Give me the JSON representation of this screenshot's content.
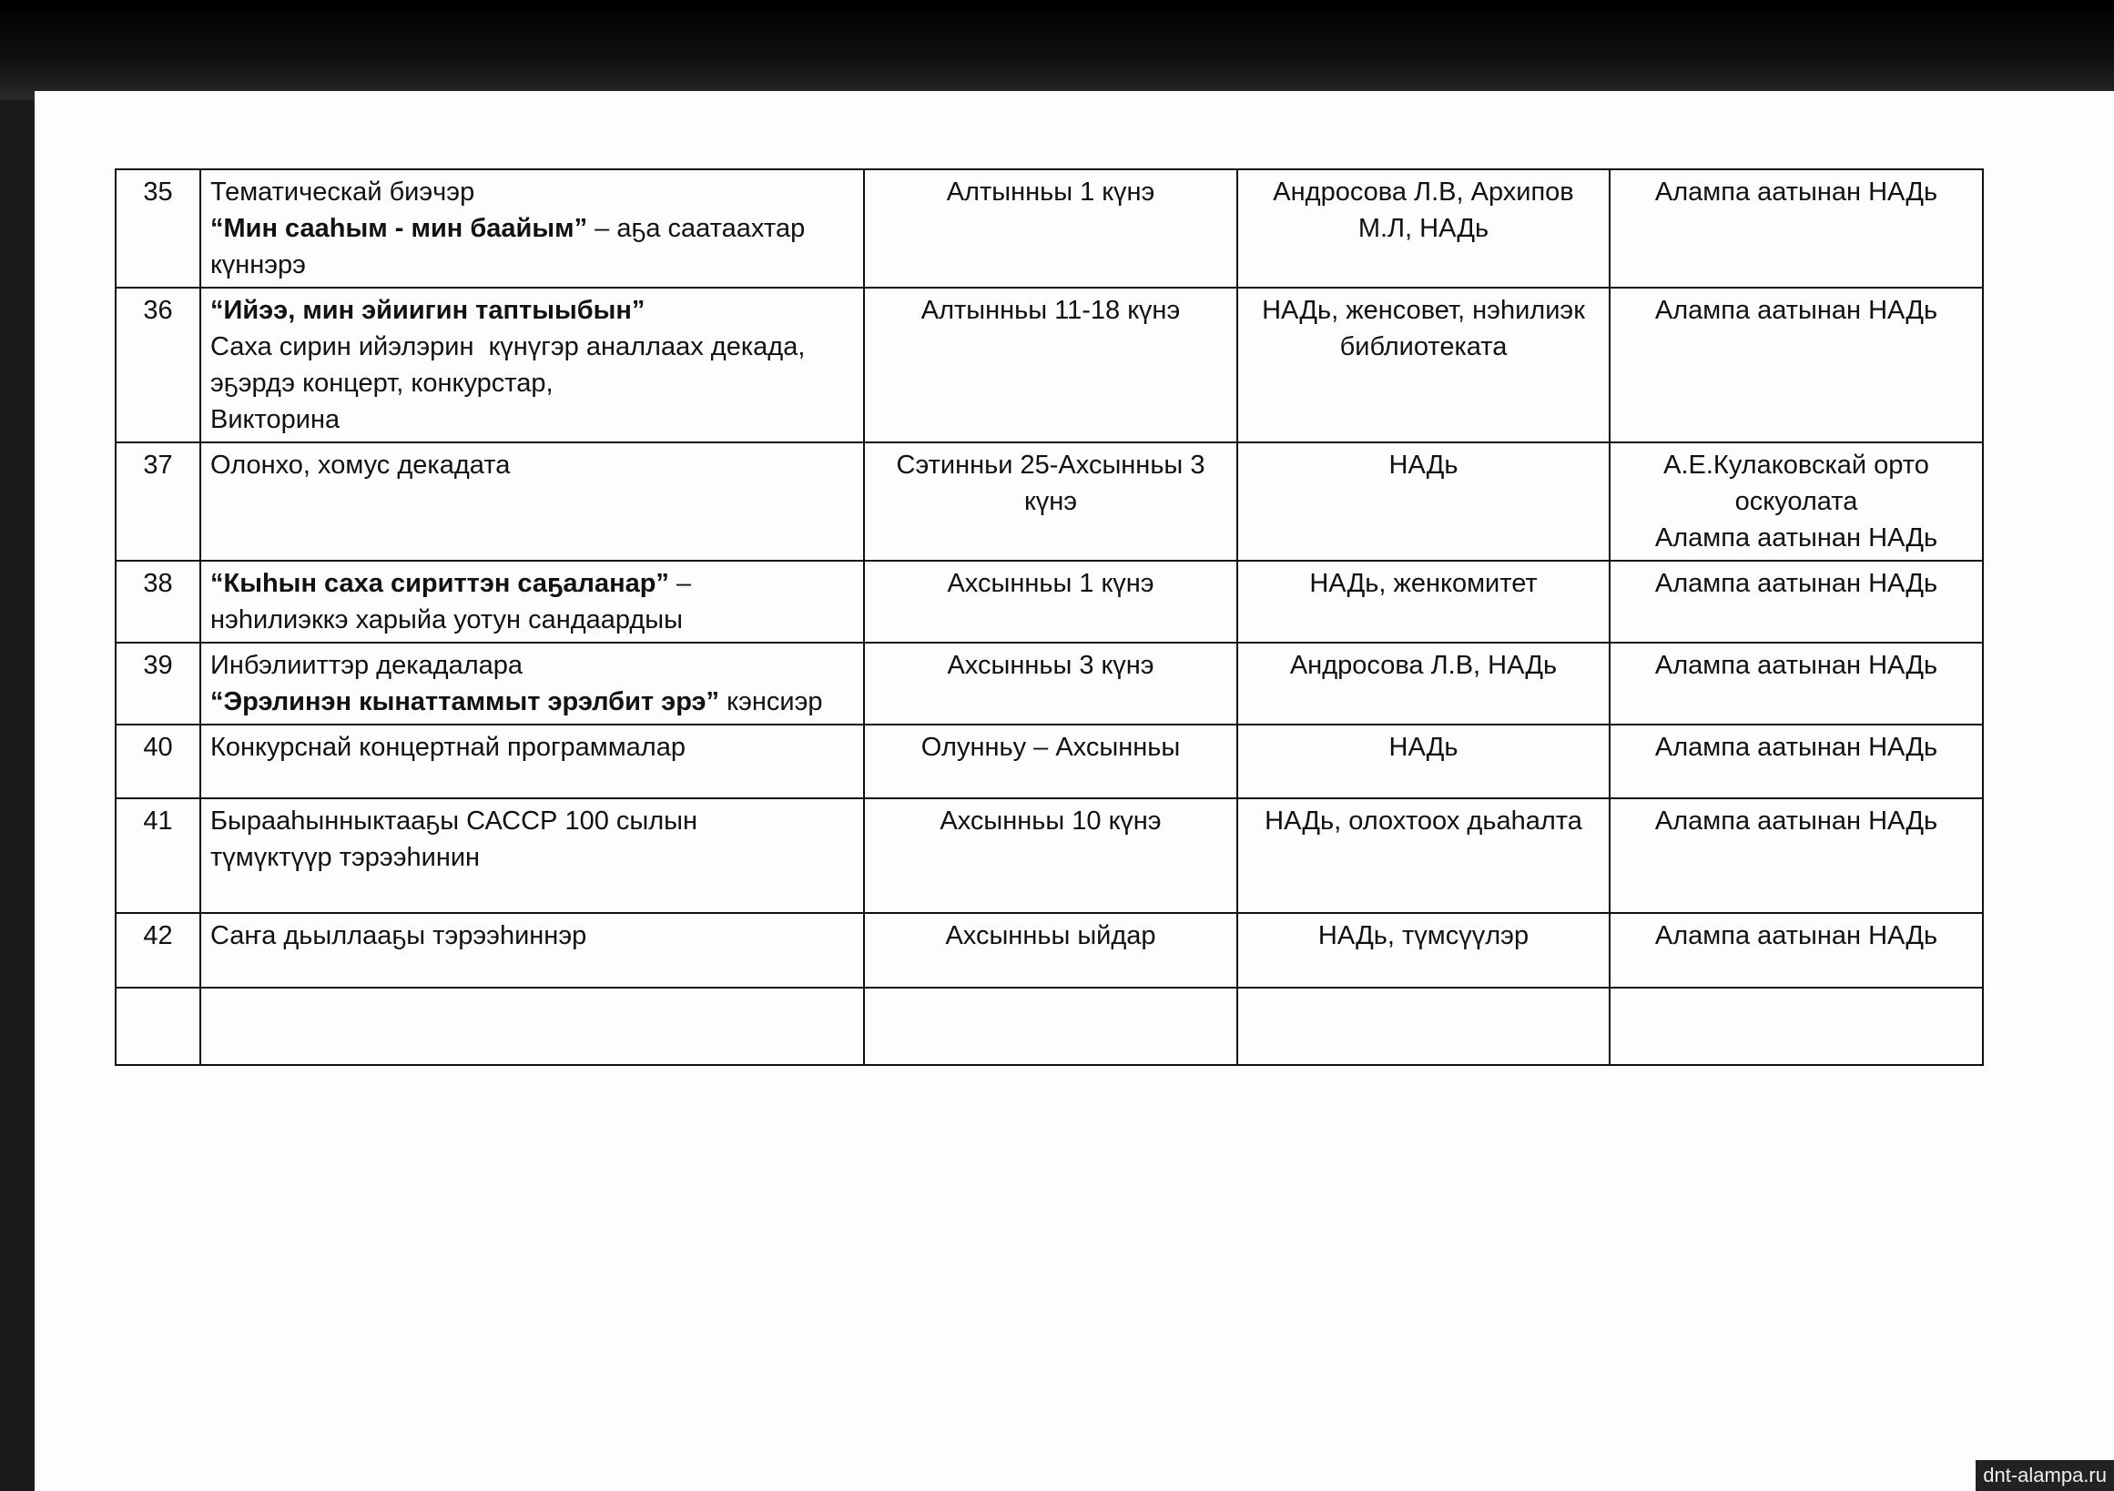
{
  "table": {
    "rows": [
      {
        "number": "35",
        "event": [
          [
            {
              "text": "Тематическай биэчэр",
              "bold": false
            }
          ],
          [
            {
              "text": "“Мин сааһым - мин баайым”",
              "bold": true
            },
            {
              "text": " – аҕа саатаахтар күннэрэ",
              "bold": false
            }
          ]
        ],
        "dates": "Алтынньы 1 күнэ",
        "responsible": "Андросова Л.В, Архипов М.Л, НАДь",
        "location": [
          "Алампа аатынан НАДь"
        ]
      },
      {
        "number": "36",
        "event": [
          [
            {
              "text": "“Ийээ, мин эйиигин таптыыбын”",
              "bold": true
            }
          ],
          [
            {
              "text": "Саха сирин ийэлэрин  күнүгэр аналлаах декада,",
              "bold": false
            }
          ],
          [
            {
              "text": "эҕэрдэ концерт, конкурстар,",
              "bold": false
            }
          ],
          [
            {
              "text": "Викторина",
              "bold": false
            }
          ]
        ],
        "dates": "Алтынньы 11-18 күнэ",
        "responsible": "НАДь, женсовет, нэһилиэк библиотеката",
        "location": [
          "Алампа аатынан НАДь"
        ]
      },
      {
        "number": "37",
        "event": [
          [
            {
              "text": "Олонхо, хомус декадата",
              "bold": false
            }
          ]
        ],
        "dates": "Сэтинньи 25-Ахсынньы 3 күнэ",
        "responsible": "НАДь",
        "location": [
          "А.Е.Кулаковскай орто оскуолата",
          "Алампа аатынан НАДь"
        ]
      },
      {
        "number": "38",
        "event": [
          [
            {
              "text": "“Кыһын саха сириттэн саҕаланар”",
              "bold": true
            },
            {
              "text": " –",
              "bold": false
            }
          ],
          [
            {
              "text": "нэһилиэккэ харыйа уотун сандаардыы",
              "bold": false
            }
          ]
        ],
        "dates": "Ахсынньы 1 күнэ",
        "responsible": "НАДь, женкомитет",
        "location": [
          "Алампа аатынан НАДь"
        ]
      },
      {
        "number": "39",
        "event": [
          [
            {
              "text": "Инбэлииттэр декадалара",
              "bold": false
            }
          ],
          [
            {
              "text": "“Эрэлинэн кынаттаммыт эрэлбит эрэ”",
              "bold": true
            },
            {
              "text": " кэнсиэр",
              "bold": false
            }
          ]
        ],
        "dates": "Ахсынньы 3 күнэ",
        "responsible": "Андросова Л.В, НАДь",
        "location": [
          "Алампа аатынан НАДь"
        ]
      },
      {
        "number": "40",
        "event": [
          [
            {
              "text": "Конкурснай концертнай программалар",
              "bold": false
            }
          ]
        ],
        "dates": "Олунньу – Ахсынньы",
        "responsible": "НАДь",
        "location": [
          "Алампа аатынан НАДь"
        ]
      },
      {
        "number": "41",
        "event": [
          [
            {
              "text": "Бырааһынныктааҕы САССР 100 сылын",
              "bold": false
            }
          ],
          [
            {
              "text": "түмүктүүр тэрээһинин",
              "bold": false
            }
          ]
        ],
        "dates": "Ахсынньы 10 күнэ",
        "responsible": "НАДь, олохтоох дьаһалта",
        "location": [
          "Алампа аатынан НАДь"
        ]
      },
      {
        "number": "42",
        "event": [
          [
            {
              "text": "Саҥа дьыллааҕы тэрээһиннэр",
              "bold": false
            }
          ]
        ],
        "dates": "Ахсынньы ыйдар",
        "responsible": "НАДь, түмсүүлэр",
        "location": [
          "Алампа аатынан НАДь"
        ]
      }
    ]
  },
  "watermark": "dnt-alampa.ru"
}
